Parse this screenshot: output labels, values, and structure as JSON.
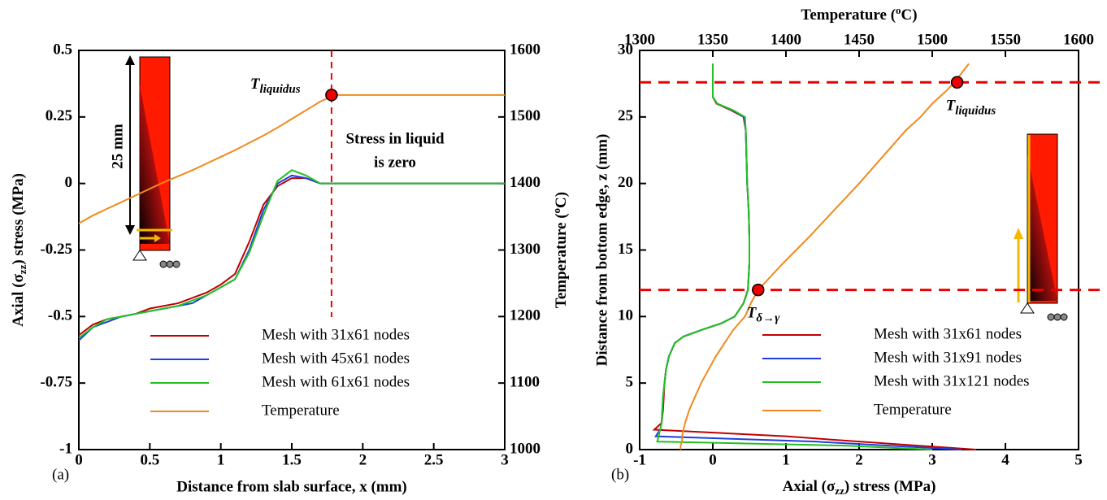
{
  "chart_data": [
    {
      "type": "line",
      "panel_label": "(a)",
      "xlabel": "Distance from slab surface, x (mm)",
      "ylabel": [
        "Axial (σ",
        "zz",
        ") stress (MPa)"
      ],
      "y2label": [
        "Temperature (",
        "o",
        "C)"
      ],
      "xlim": [
        0,
        3
      ],
      "xticks": [
        0,
        0.5,
        1,
        1.5,
        2,
        2.5,
        3
      ],
      "ylim": [
        -1,
        0.5
      ],
      "yticks": [
        -1,
        -0.75,
        -0.5,
        -0.25,
        0,
        0.25,
        0.5
      ],
      "y2lim": [
        1000,
        1600
      ],
      "y2ticks": [
        1000,
        1100,
        1200,
        1300,
        1400,
        1500,
        1600
      ],
      "x": [
        0,
        0.1,
        0.2,
        0.3,
        0.4,
        0.5,
        0.6,
        0.7,
        0.8,
        0.9,
        1.0,
        1.1,
        1.2,
        1.3,
        1.4,
        1.5,
        1.6,
        1.7,
        1.8,
        2,
        2.5,
        3
      ],
      "series": [
        {
          "name": "Mesh with 31x61 nodes",
          "color": "#c00000",
          "values": [
            -0.57,
            -0.53,
            -0.51,
            -0.5,
            -0.49,
            -0.47,
            -0.46,
            -0.45,
            -0.43,
            -0.41,
            -0.38,
            -0.34,
            -0.22,
            -0.08,
            -0.01,
            0.02,
            0.02,
            0,
            0,
            0,
            0,
            0
          ]
        },
        {
          "name": "Mesh with 45x61 nodes",
          "color": "#1f3fe0",
          "values": [
            -0.59,
            -0.54,
            -0.52,
            -0.5,
            -0.49,
            -0.48,
            -0.47,
            -0.46,
            -0.45,
            -0.42,
            -0.39,
            -0.36,
            -0.25,
            -0.1,
            0.0,
            0.03,
            0.02,
            0,
            0,
            0,
            0,
            0
          ]
        },
        {
          "name": "Mesh with 61x61 nodes",
          "color": "#22c022",
          "values": [
            -0.58,
            -0.54,
            -0.51,
            -0.5,
            -0.49,
            -0.48,
            -0.47,
            -0.46,
            -0.44,
            -0.42,
            -0.39,
            -0.36,
            -0.26,
            -0.12,
            0.01,
            0.05,
            0.03,
            0,
            0,
            0,
            0,
            0
          ]
        },
        {
          "name": "Temperature",
          "color": "#f08a1c",
          "axis": "y2",
          "values": [
            1340,
            1352,
            1362,
            1372,
            1382,
            1392,
            1402,
            1411,
            1420,
            1430,
            1440,
            1450,
            1461,
            1472,
            1484,
            1497,
            1510,
            1523,
            1533,
            1533,
            1533,
            1533
          ]
        }
      ],
      "vlines": [
        1.78
      ],
      "markers": [
        {
          "x": 1.78,
          "y": 1533,
          "axis": "y2",
          "label": [
            "T",
            "liquidus"
          ]
        }
      ],
      "annotations": [
        "Stress in liquid",
        "is zero"
      ],
      "inset_label": "25 mm",
      "legend": "lower right"
    },
    {
      "type": "profile",
      "panel_label": "(b)",
      "xlabel": [
        "Axial (σ",
        "zz",
        ") stress (MPa)"
      ],
      "x2label": [
        "Temperature (",
        "o",
        "C)"
      ],
      "ylabel": "Distance from bottom edge, z (mm)",
      "xlim": [
        -1,
        5
      ],
      "xticks": [
        -1,
        0,
        1,
        2,
        3,
        4,
        5
      ],
      "x2lim": [
        1300,
        1600
      ],
      "x2ticks": [
        1300,
        1350,
        1400,
        1450,
        1500,
        1550,
        1600
      ],
      "ylim": [
        0,
        30
      ],
      "yticks": [
        0,
        5,
        10,
        15,
        20,
        25,
        30
      ],
      "y": [
        0,
        0.3,
        0.6,
        1,
        1.5,
        2,
        3,
        4,
        5,
        6,
        7,
        8,
        8.5,
        9,
        9.5,
        10,
        11,
        12,
        14,
        16,
        18,
        20,
        22,
        24,
        25,
        25.5,
        26,
        26.5,
        27,
        28,
        29
      ],
      "series": [
        {
          "name": "Mesh with 31x61 nodes",
          "color": "#c00000",
          "values": [
            3.6,
            2.8,
            2.0,
            1.0,
            -0.8,
            -0.7,
            -0.68,
            -0.67,
            -0.66,
            -0.64,
            -0.6,
            -0.52,
            -0.4,
            -0.15,
            0.12,
            0.3,
            0.42,
            0.48,
            0.5,
            0.5,
            0.49,
            0.47,
            0.46,
            0.45,
            0.42,
            0.25,
            0.05,
            0,
            0,
            0,
            0
          ]
        },
        {
          "name": "Mesh with 31x91 nodes",
          "color": "#1f3fe0",
          "values": [
            3.4,
            2.4,
            1.4,
            -0.78,
            -0.72,
            -0.7,
            -0.69,
            -0.68,
            -0.66,
            -0.64,
            -0.6,
            -0.52,
            -0.4,
            -0.15,
            0.12,
            0.3,
            0.42,
            0.48,
            0.5,
            0.5,
            0.49,
            0.47,
            0.46,
            0.45,
            0.43,
            0.27,
            0.06,
            0,
            0,
            0,
            0
          ]
        },
        {
          "name": "Mesh with 31x121 nodes",
          "color": "#22c022",
          "values": [
            3.0,
            1.8,
            -0.76,
            -0.74,
            -0.72,
            -0.7,
            -0.69,
            -0.68,
            -0.66,
            -0.64,
            -0.6,
            -0.52,
            -0.4,
            -0.15,
            0.12,
            0.3,
            0.42,
            0.48,
            0.5,
            0.5,
            0.49,
            0.47,
            0.46,
            0.45,
            0.44,
            0.28,
            0.06,
            0,
            0,
            0,
            0
          ]
        },
        {
          "name": "Temperature",
          "color": "#f08a1c",
          "axis": "x2",
          "values": [
            1328,
            1328,
            1329,
            1329,
            1330,
            1331,
            1334,
            1338,
            1342,
            1347,
            1352,
            1358,
            1361,
            1364,
            1368,
            1372,
            1376,
            1381,
            1398,
            1416,
            1433,
            1450,
            1466,
            1482,
            1492,
            1496,
            1500,
            1505,
            1510,
            1518,
            1525
          ]
        }
      ],
      "hlines": [
        27.6,
        12
      ],
      "markers": [
        {
          "x": 1517,
          "y": 27.6,
          "axis": "x2",
          "label": [
            "T",
            "liquidus"
          ]
        },
        {
          "x": 1381,
          "y": 12,
          "axis": "x2",
          "label": [
            "T",
            "δ→γ"
          ]
        }
      ],
      "legend": "lower right"
    }
  ]
}
